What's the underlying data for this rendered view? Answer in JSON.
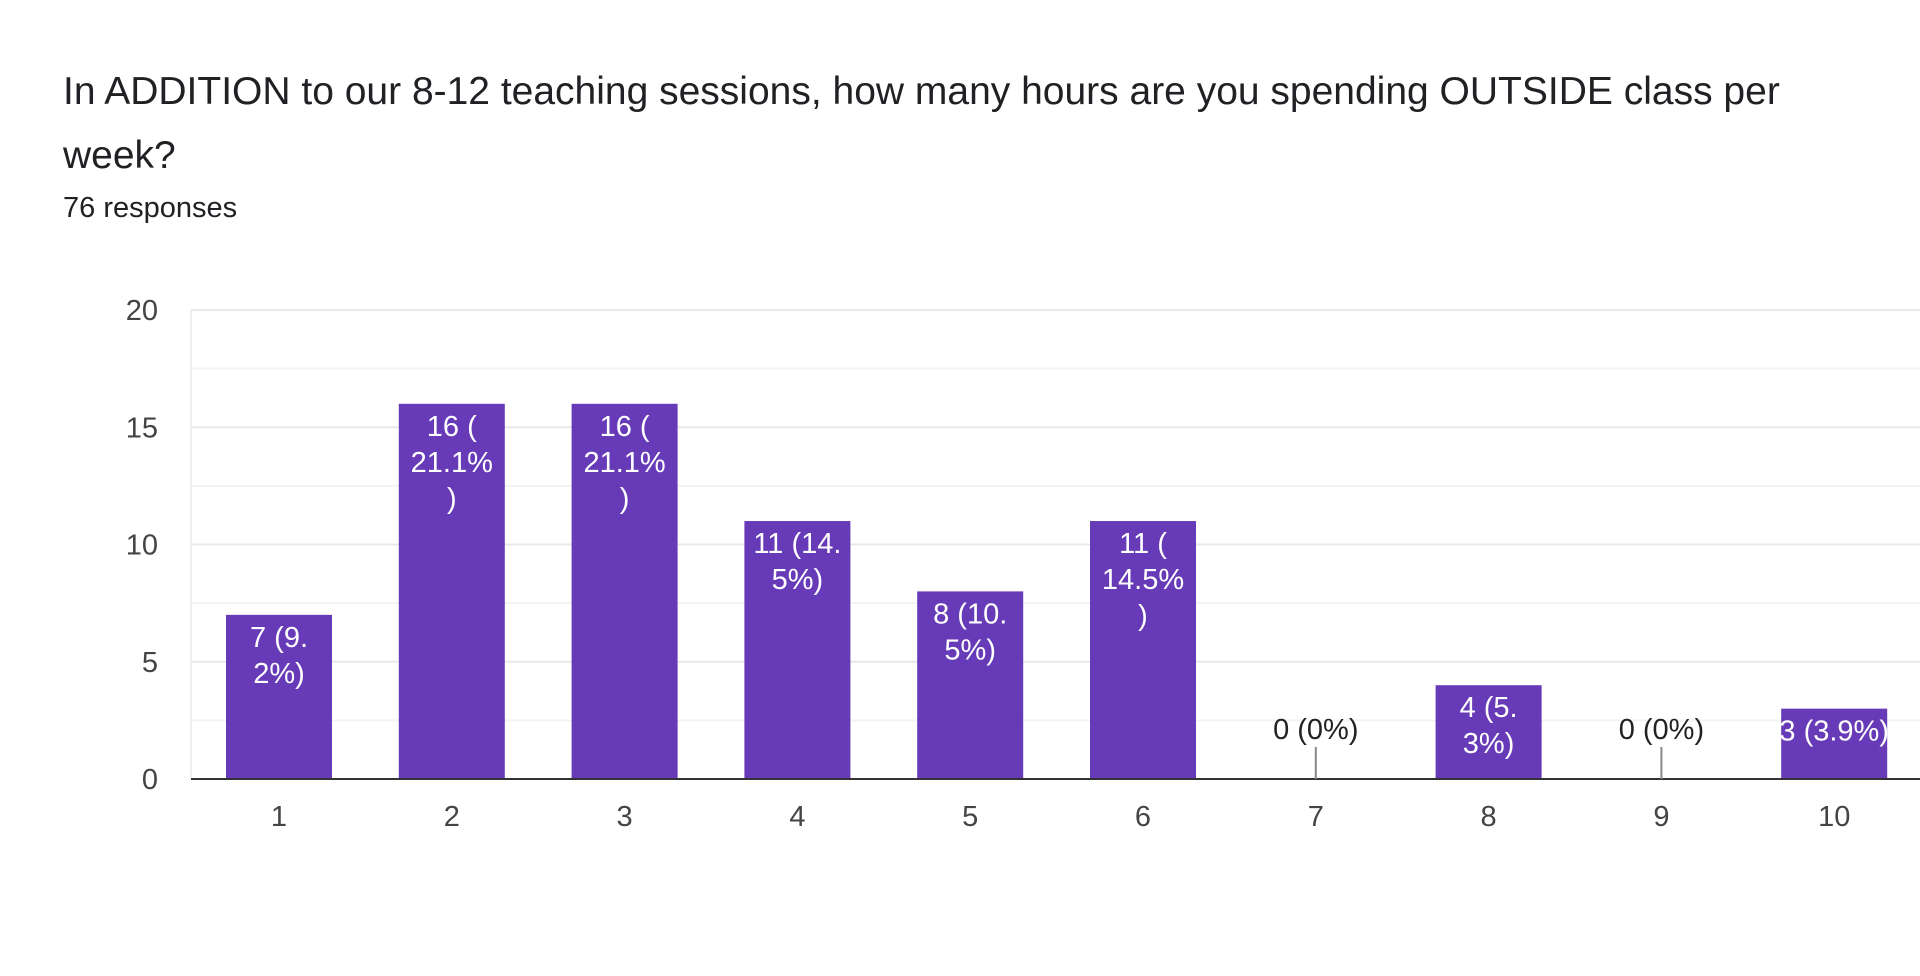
{
  "header": {
    "title": "In ADDITION to our 8-12 teaching sessions, how many hours are you spending OUTSIDE class per week?",
    "responses": "76 responses"
  },
  "chart_data": {
    "type": "bar",
    "title": "",
    "xlabel": "",
    "ylabel": "",
    "categories": [
      "1",
      "2",
      "3",
      "4",
      "5",
      "6",
      "7",
      "8",
      "9",
      "10"
    ],
    "values": [
      7,
      16,
      16,
      11,
      8,
      11,
      0,
      4,
      0,
      3
    ],
    "data_labels": [
      [
        "7 (9.",
        "2%)"
      ],
      [
        "16 (",
        "21.1%",
        ")"
      ],
      [
        "16 (",
        "21.1%",
        ")"
      ],
      [
        "11 (14.",
        "5%)"
      ],
      [
        "8 (10.",
        "5%)"
      ],
      [
        "11 (",
        "14.5%",
        ")"
      ],
      [
        "0 (0%)"
      ],
      [
        "4 (5.",
        "3%)"
      ],
      [
        "0 (0%)"
      ],
      [
        "3 (3.9%)"
      ]
    ],
    "ylim": [
      0,
      20
    ],
    "yticks": [
      0,
      5,
      10,
      15,
      20
    ],
    "grid": true,
    "bar_color": "#673ab7",
    "gridline_color": "#eeeeee",
    "axis_color": "#333333"
  }
}
